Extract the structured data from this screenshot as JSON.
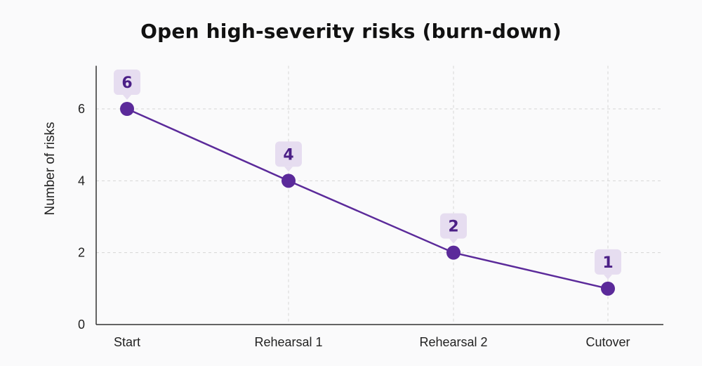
{
  "chart_data": {
    "type": "line",
    "title": "Open high-severity risks (burn-down)",
    "xlabel": "",
    "ylabel": "Number of risks",
    "categories": [
      "Start",
      "Rehearsal 1",
      "Rehearsal 2",
      "Cutover"
    ],
    "series": [
      {
        "values": [
          6,
          4,
          2,
          1
        ]
      }
    ],
    "data_labels": [
      "6",
      "4",
      "2",
      "1"
    ],
    "yticks": [
      0,
      2,
      4,
      6
    ],
    "ylim": [
      0,
      7.2
    ],
    "grid": true,
    "legend": "none"
  },
  "colors": {
    "line": "#5b2a9a",
    "marker": "#5b2a9a",
    "label_bg": "#e6ddf0",
    "label_text": "#4b1f86",
    "grid": "#d6d6d6",
    "axis": "#333333"
  }
}
